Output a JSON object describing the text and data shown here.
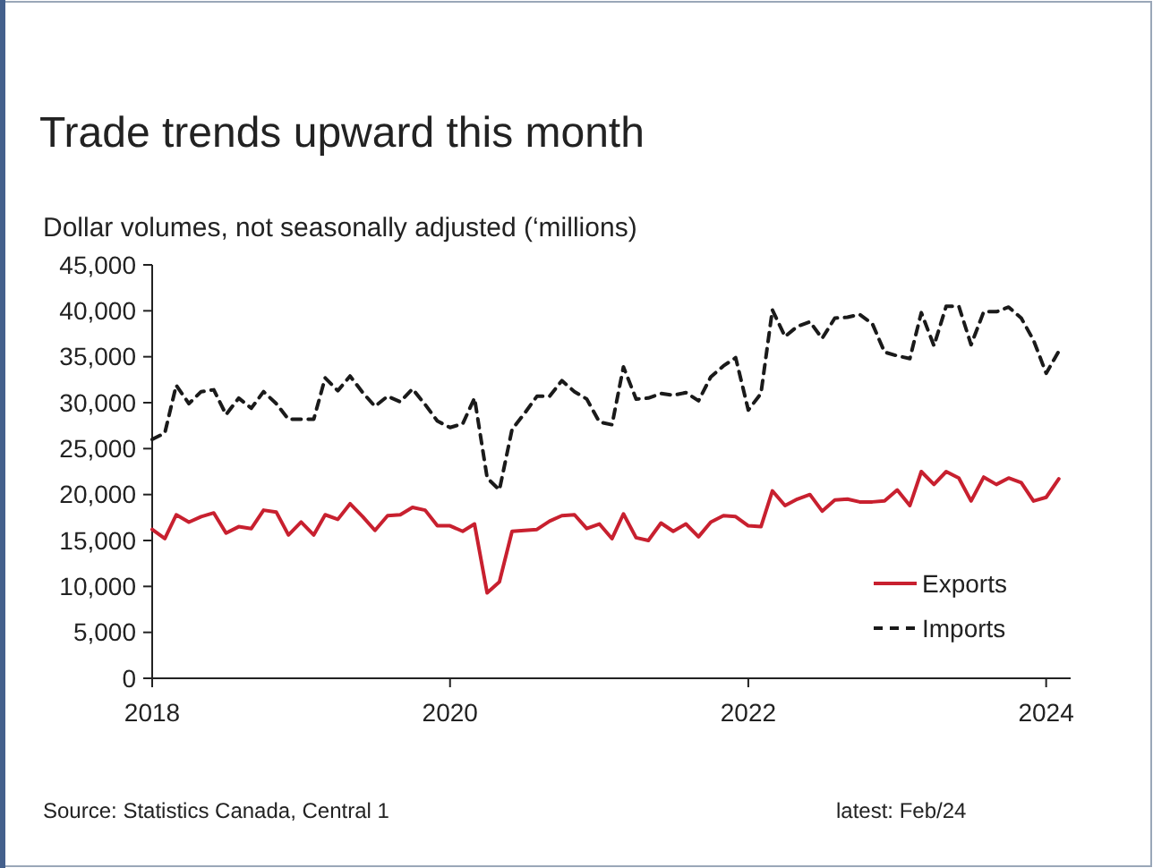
{
  "chart_data": {
    "type": "line",
    "title": "Trade trends upward this month",
    "ylabel": "Dollar volumes, not seasonally adjusted (‘millions)",
    "x": [
      "2018-01",
      "2018-02",
      "2018-03",
      "2018-04",
      "2018-05",
      "2018-06",
      "2018-07",
      "2018-08",
      "2018-09",
      "2018-10",
      "2018-11",
      "2018-12",
      "2019-01",
      "2019-02",
      "2019-03",
      "2019-04",
      "2019-05",
      "2019-06",
      "2019-07",
      "2019-08",
      "2019-09",
      "2019-10",
      "2019-11",
      "2019-12",
      "2020-01",
      "2020-02",
      "2020-03",
      "2020-04",
      "2020-05",
      "2020-06",
      "2020-07",
      "2020-08",
      "2020-09",
      "2020-10",
      "2020-11",
      "2020-12",
      "2021-01",
      "2021-02",
      "2021-03",
      "2021-04",
      "2021-05",
      "2021-06",
      "2021-07",
      "2021-08",
      "2021-09",
      "2021-10",
      "2021-11",
      "2021-12",
      "2022-01",
      "2022-02",
      "2022-03",
      "2022-04",
      "2022-05",
      "2022-06",
      "2022-07",
      "2022-08",
      "2022-09",
      "2022-10",
      "2022-11",
      "2022-12",
      "2023-01",
      "2023-02",
      "2023-03",
      "2023-04",
      "2023-05",
      "2023-06",
      "2023-07",
      "2023-08",
      "2023-09",
      "2023-10",
      "2023-11",
      "2023-12",
      "2024-01",
      "2024-02"
    ],
    "series": [
      {
        "name": "Exports",
        "color": "#c8202f",
        "line_style": "solid",
        "values": [
          16200,
          15200,
          17800,
          17000,
          17600,
          18000,
          15800,
          16500,
          16300,
          18300,
          18100,
          15600,
          17000,
          15600,
          17800,
          17300,
          19000,
          17600,
          16100,
          17700,
          17800,
          18600,
          18300,
          16600,
          16600,
          16000,
          16800,
          9300,
          10500,
          16000,
          16100,
          16200,
          17100,
          17700,
          17800,
          16300,
          16800,
          15200,
          17900,
          15300,
          15000,
          16900,
          16000,
          16800,
          15400,
          17000,
          17700,
          17600,
          16600,
          16500,
          20400,
          18800,
          19500,
          20000,
          18200,
          19400,
          19500,
          19200,
          19200,
          19300,
          20500,
          18800,
          22500,
          21100,
          22500,
          21800,
          19300,
          21900,
          21100,
          21800,
          21300,
          19300,
          19700,
          21700
        ]
      },
      {
        "name": "Imports",
        "color": "#1a1a1a",
        "line_style": "dashed",
        "values": [
          26000,
          26700,
          31900,
          29900,
          31200,
          31400,
          28700,
          30500,
          29400,
          31200,
          29900,
          28200,
          28200,
          28200,
          32700,
          31300,
          32900,
          31100,
          29600,
          30700,
          30100,
          31500,
          29800,
          28000,
          27300,
          27700,
          30500,
          21800,
          20500,
          27100,
          28800,
          30700,
          30700,
          32400,
          31200,
          30400,
          27900,
          27600,
          33900,
          30400,
          30500,
          31000,
          30800,
          31100,
          30200,
          32800,
          34000,
          34900,
          29200,
          31000,
          40100,
          37200,
          38300,
          38800,
          37000,
          39200,
          39300,
          39600,
          38600,
          35500,
          35100,
          34800,
          39800,
          36200,
          40500,
          40500,
          36300,
          39900,
          39900,
          40400,
          39200,
          36800,
          33200,
          35600
        ]
      }
    ],
    "xlim": [
      "2018-01",
      "2024-03"
    ],
    "xticks": [
      {
        "value": "2018-01",
        "label": "2018"
      },
      {
        "value": "2020-01",
        "label": "2020"
      },
      {
        "value": "2022-01",
        "label": "2022"
      },
      {
        "value": "2024-01",
        "label": "2024"
      }
    ],
    "ylim": [
      0,
      45000
    ],
    "yticks": [
      {
        "value": 0,
        "label": "0"
      },
      {
        "value": 5000,
        "label": "5,000"
      },
      {
        "value": 10000,
        "label": "10,000"
      },
      {
        "value": 15000,
        "label": "15,000"
      },
      {
        "value": 20000,
        "label": "20,000"
      },
      {
        "value": 25000,
        "label": "25,000"
      },
      {
        "value": 30000,
        "label": "30,000"
      },
      {
        "value": 35000,
        "label": "35,000"
      },
      {
        "value": 40000,
        "label": "40,000"
      },
      {
        "value": 45000,
        "label": "45,000"
      }
    ],
    "grid": false,
    "legend": "bottom right",
    "marker": "none",
    "annotations": [
      "Source: Statistics Canada, Central 1",
      "latest: Feb/24"
    ]
  }
}
